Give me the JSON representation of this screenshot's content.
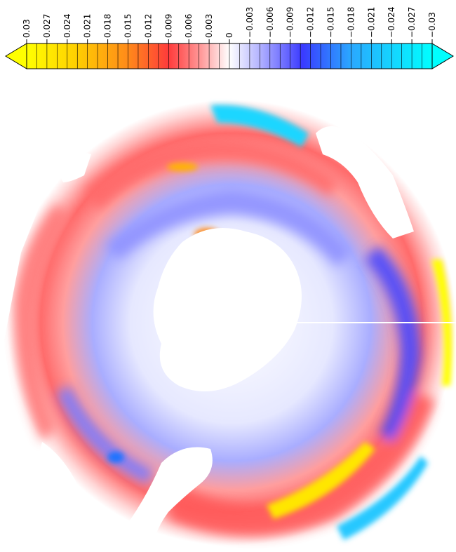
{
  "colorbar": {
    "tick_labels": [
      "0.03",
      "0.027",
      "0.024",
      "0.021",
      "0.018",
      "0.015",
      "0.012",
      "0.009",
      "0.006",
      "0.003",
      "0",
      "−0.003",
      "−0.006",
      "−0.009",
      "−0.012",
      "−0.015",
      "−0.018",
      "−0.021",
      "−0.024",
      "−0.027",
      "−0.03"
    ],
    "min": -0.03,
    "max": 0.03,
    "step": 0.003,
    "orientation": "horizontal, labels rotated 90 degrees",
    "extend": "both",
    "colors": {
      "high_extreme": "#ffff00",
      "high_mid": "#ff9a1a",
      "high": "#ff3b3b",
      "low_neutral": "#ffffff",
      "low": "#3a3aff",
      "low_mid": "#2aa8ff",
      "low_extreme": "#00ffff"
    }
  },
  "map": {
    "projection": "polar stereographic (south pole)",
    "land_color": "#ffffff",
    "ocean_background": "#f2f3ff"
  }
}
